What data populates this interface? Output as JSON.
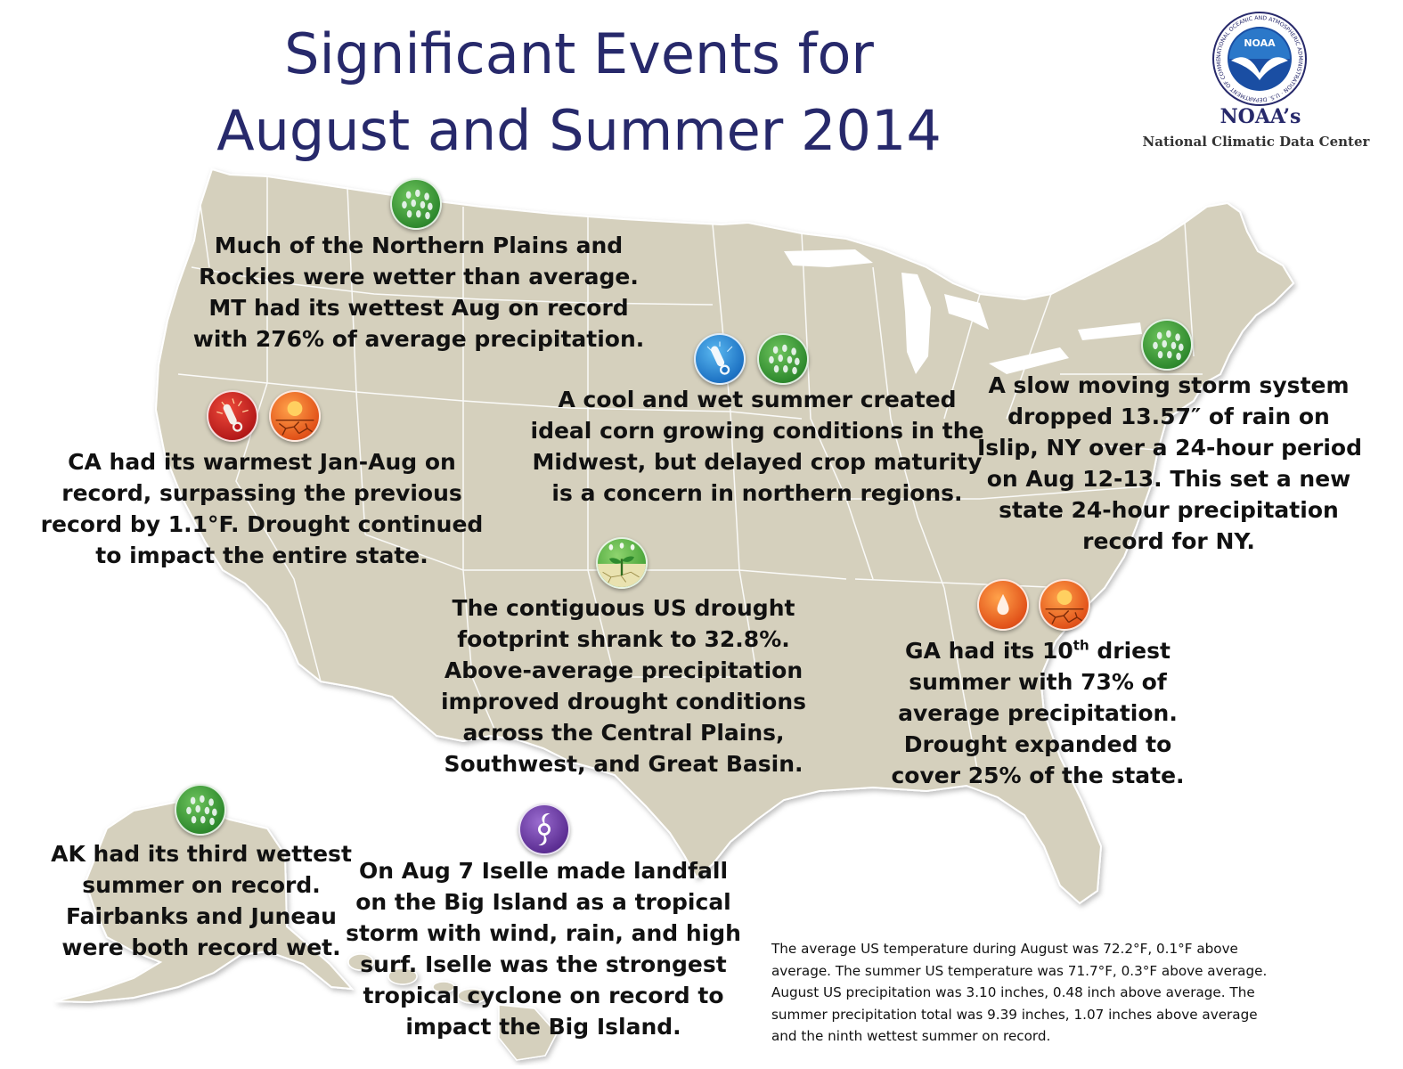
{
  "title_lines": [
    "Significant Events for",
    "August and Summer 2014"
  ],
  "logo": {
    "ring_text": "NATIONAL OCEANIC AND ATMOSPHERIC ADMINISTRATION · U.S. DEPARTMENT OF COMMERCE ·",
    "center": "NOAA",
    "name": "NOAA’s",
    "center_name": "National Climatic Data Center"
  },
  "colors": {
    "title": "#27296b",
    "land": "#d5d0bd",
    "border": "#ffffff",
    "rain_icon": "#2f8a2e",
    "cold_icon": "#1e73c4",
    "hot_icon": "#b51a1a",
    "dry_icon": "#e2531a",
    "cyclone_icon": "#5d2f94"
  },
  "callouts": {
    "northern_plains": {
      "icons": [
        "rain-icon"
      ],
      "lines": [
        "Much of the Northern Plains and",
        "Rockies were wetter than average.",
        "MT had its wettest Aug on record",
        "with 276% of average precipitation."
      ]
    },
    "california": {
      "icons": [
        "hot-thermometer-icon",
        "drought-icon"
      ],
      "lines": [
        "CA had its warmest Jan-Aug on",
        "record, surpassing the previous",
        "record by 1.1°F. Drought continued",
        "to impact the entire state."
      ]
    },
    "midwest": {
      "icons": [
        "cold-thermometer-icon",
        "rain-icon"
      ],
      "lines": [
        "A cool and wet summer created",
        "ideal corn growing conditions in the",
        "Midwest, but delayed crop maturity",
        "is a concern in northern regions."
      ]
    },
    "new_york": {
      "icons": [
        "rain-icon"
      ],
      "lines": [
        "A slow moving storm system",
        "dropped 13.57″ of rain on",
        "Islip, NY over a 24-hour period",
        "on Aug 12-13. This set a new",
        "state 24-hour precipitation",
        "record for NY."
      ]
    },
    "drought_footprint": {
      "icons": [
        "drought-improvement-icon"
      ],
      "lines": [
        "The contiguous US drought",
        "footprint shrank to 32.8%.",
        "Above-average precipitation",
        "improved drought conditions",
        "across the Central Plains,",
        "Southwest, and Great Basin."
      ]
    },
    "georgia": {
      "icons": [
        "dry-icon",
        "drought-icon"
      ],
      "line1_pre": "GA had its 10",
      "line1_sup": "th",
      "line1_post": " driest",
      "lines": [
        "summer with 73% of",
        "average precipitation.",
        "Drought expanded to",
        "cover 25% of the state."
      ]
    },
    "alaska": {
      "icons": [
        "rain-icon"
      ],
      "lines": [
        "AK had its third wettest",
        "summer on record.",
        "Fairbanks and Juneau",
        "were both record wet."
      ]
    },
    "hawaii": {
      "icons": [
        "tropical-cyclone-icon"
      ],
      "lines": [
        "On Aug 7 Iselle made landfall",
        "on the Big Island as a tropical",
        "storm with  wind, rain, and high",
        "surf. Iselle was the strongest",
        "tropical cyclone on record to",
        "impact the Big Island."
      ]
    }
  },
  "footnote_lines": [
    "The average US temperature during August was 72.2°F, 0.1°F above",
    "average. The summer US temperature was 71.7°F, 0.3°F above average.",
    "August US precipitation was 3.10 inches, 0.48 inch above average. The",
    "summer precipitation total was 9.39 inches, 1.07 inches above average",
    "and the ninth wettest summer on record."
  ]
}
